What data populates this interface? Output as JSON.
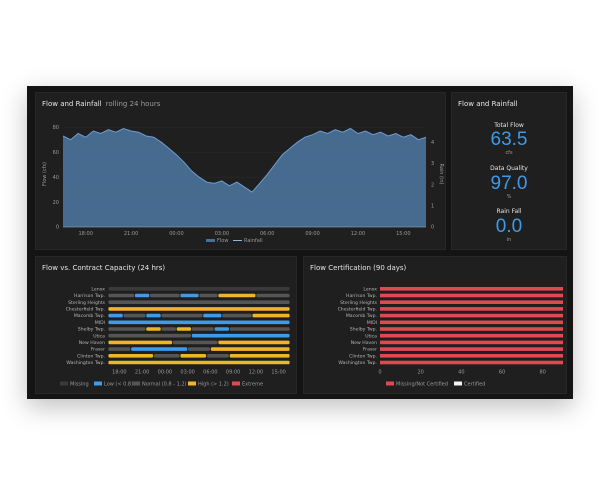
{
  "flow_panel": {
    "title": "Flow and Rainfall",
    "subtitle": "rolling 24 hours",
    "y_axis_left": "Flow (cfs)",
    "y_axis_right": "Rain (in)",
    "legend": [
      "Flow",
      "Rainfall"
    ],
    "colors": {
      "flow": "#4a6f96",
      "flow_line": "#6e9ccf",
      "rain": "#8ab8e0"
    }
  },
  "stats_panel": {
    "title": "Flow and Rainfall",
    "stats": [
      {
        "label": "Total Flow",
        "value": "63.5",
        "unit": "cfs"
      },
      {
        "label": "Data Quality",
        "value": "97.0",
        "unit": "%"
      },
      {
        "label": "Rain Fall",
        "value": "0.0",
        "unit": "in"
      }
    ]
  },
  "capacity_panel": {
    "title": "Flow vs. Contract Capacity (24 hrs)",
    "legend": [
      {
        "label": "Missing",
        "color": "#3a3a3a"
      },
      {
        "label": "Low (< 0.8)",
        "color": "#3d9bea"
      },
      {
        "label": "Normal (0.8 - 1.2)",
        "color": "#555555"
      },
      {
        "label": "High (> 1.2)",
        "color": "#f0b429"
      },
      {
        "label": "Extreme",
        "color": "#e04852"
      }
    ]
  },
  "cert_panel": {
    "title": "Flow Certification (90 days)",
    "legend": [
      {
        "label": "Missing/Not Certified",
        "color": "#e04852"
      },
      {
        "label": "Certified",
        "color": "#f2f2f2"
      }
    ]
  },
  "chart_data": [
    {
      "type": "area",
      "title": "Flow and Rainfall",
      "subtitle": "rolling 24 hours",
      "ylabel": "Flow (cfs)",
      "y2label": "Rain (in)",
      "ylim": [
        0,
        85
      ],
      "y2lim": [
        0,
        5
      ],
      "x_ticks": [
        "18:00",
        "21:00",
        "00:00",
        "03:00",
        "06:00",
        "09:00",
        "12:00",
        "15:00"
      ],
      "y_ticks": [
        0,
        20,
        40,
        60,
        80
      ],
      "y2_ticks": [
        0,
        1,
        2,
        3,
        4
      ],
      "x_hours": [
        16.5,
        17,
        17.5,
        18,
        18.5,
        19,
        19.5,
        20,
        20.5,
        21,
        21.5,
        22,
        22.5,
        23,
        23.5,
        24,
        24.5,
        25,
        25.5,
        26,
        26.5,
        27,
        27.5,
        28,
        28.5,
        29,
        29.5,
        30,
        30.5,
        31,
        31.5,
        32,
        32.5,
        33,
        33.5,
        34,
        34.5,
        35,
        35.5,
        36,
        36.5,
        37,
        37.5,
        38,
        38.5,
        39,
        39.5,
        40,
        40.5
      ],
      "series": [
        {
          "name": "Flow",
          "values": [
            73,
            70,
            75,
            72,
            77,
            75,
            78,
            76,
            79,
            77,
            76,
            73,
            72,
            68,
            63,
            58,
            52,
            45,
            40,
            36,
            35,
            37,
            33,
            36,
            32,
            28,
            35,
            42,
            50,
            58,
            63,
            68,
            72,
            74,
            77,
            75,
            78,
            76,
            79,
            75,
            77,
            74,
            76,
            73,
            75,
            72,
            74,
            70,
            72
          ]
        },
        {
          "name": "Rainfall",
          "values": [
            0,
            0,
            0,
            0,
            0,
            0,
            0,
            0,
            0,
            0,
            0,
            0,
            0,
            0,
            0,
            0,
            0,
            0,
            0,
            0,
            0,
            0,
            0,
            0,
            0,
            0,
            0,
            0,
            0,
            0,
            0,
            0,
            0,
            0,
            0,
            0,
            0,
            0,
            0,
            0,
            0,
            0,
            0,
            0,
            0,
            0,
            0,
            0,
            0
          ]
        }
      ]
    },
    {
      "type": "heatmap",
      "title": "Flow vs. Contract Capacity (24 hrs)",
      "rows": [
        "Lenox",
        "Harrison Twp.",
        "Sterling Heights",
        "Chesterfield Twp.",
        "Macomb Twp.",
        "MIDI",
        "Shelby Twp.",
        "Utica",
        "New Haven",
        "Fraser",
        "Clinton Twp.",
        "Washington Twp."
      ],
      "x_ticks": [
        "18:00",
        "21:00",
        "00:00",
        "03:00",
        "06:00",
        "09:00",
        "12:00",
        "15:00"
      ],
      "levels": [
        "Missing",
        "Low (< 0.8)",
        "Normal (0.8 - 1.2)",
        "High (> 1.2)",
        "Extreme"
      ],
      "cells": [
        "MMMMMMMMMMMMMMMMMMMMMMMMMMMMMMMMMMMMMMMMMMMMMMMM",
        "NNNNNNNLLLLNNNNNNNNLLLLLNNNNNHHHHHHHHHHNNNNNNNNN",
        "NNNNNNNNNNNNNNNNNNNNNNNNNNNNNNNNNNNNNNNNNNNNNNNN",
        "HHHHHHHHHHHHHHHHHHHHHHHHHHHHHHHHHHHHHHHHHHHHHHHH",
        "LLLLNNNNNNLLLLNNNNNNNNNNNLLLLLNNNNNNNNHHHHHHHHHH",
        "LLLLLLLLLLLLLLLLLLLLLLLLLLLLLLLLLLLLLLLLLLLLLLLL",
        "NNNNNNNNNNHHHHNNNNHHHHNNNNNNLLLLNNNNNNNNNNNNNNNN",
        "NNNNNNNNNNNNNNNNNNNNNNLLLLLLLLLLLLLLLLLLLLLLLLLL",
        "HHHHHHHHHHHHHHHHHNNNNNNNNNNNNHHHHHHHHHHHHHHHHHHH",
        "NNNNNNLLLLLLLLLLLLLLLNNNNNNHHHHHHHHHHHHHHHHHHHHH",
        "HHHHHHHHHHHHNNNNNNNHHHHHHHNNNNNNHHHHHHHHHHHHHHHH",
        "HHHHHHHHHHHHHHHHHHHHHHHHHHHHHHHHHHHHHHHHHHHHHHHH"
      ]
    },
    {
      "type": "bar",
      "title": "Flow Certification (90 days)",
      "categories": [
        "Lenox",
        "Harrison Twp.",
        "Sterling Heights",
        "Chesterfield Twp.",
        "Macomb Twp.",
        "MIDI",
        "Shelby Twp.",
        "Utica",
        "New Haven",
        "Fraser",
        "Clinton Twp.",
        "Washington Twp."
      ],
      "x_ticks": [
        0,
        20,
        40,
        60,
        80
      ],
      "xlim": [
        0,
        90
      ],
      "series": [
        {
          "name": "Missing/Not Certified",
          "values": [
            90,
            90,
            90,
            90,
            90,
            90,
            90,
            90,
            90,
            90,
            90,
            90
          ]
        },
        {
          "name": "Certified",
          "values": [
            0,
            0,
            0,
            0,
            0,
            0,
            0,
            0,
            0,
            0,
            0,
            0
          ]
        }
      ]
    }
  ]
}
